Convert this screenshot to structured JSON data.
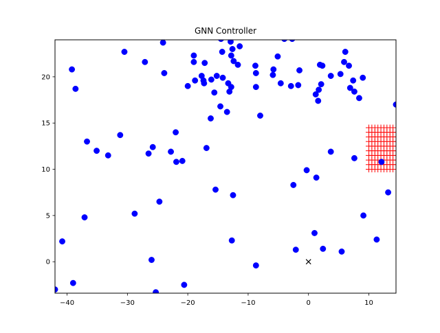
{
  "chart_data": {
    "type": "scatter",
    "title": "GNN Controller",
    "xlabel": "",
    "ylabel": "",
    "xlim": [
      -42,
      14.5
    ],
    "ylim": [
      -3.4,
      24
    ],
    "xticks": [
      -40,
      -30,
      -20,
      -10,
      0,
      10
    ],
    "yticks": [
      0,
      5,
      10,
      15,
      20
    ],
    "xtick_labels": [
      "−40",
      "−30",
      "−20",
      "−10",
      "0",
      "10"
    ],
    "ytick_labels": [
      "0",
      "5",
      "10",
      "15",
      "20"
    ],
    "grid": false,
    "legend": "none",
    "series": [
      {
        "marker": "circle",
        "color": "#0000ff",
        "points": [
          [
            -42.0,
            -3.0
          ],
          [
            -40.8,
            2.2
          ],
          [
            -39.2,
            20.8
          ],
          [
            -39.0,
            -2.3
          ],
          [
            -38.6,
            18.7
          ],
          [
            -37.1,
            4.8
          ],
          [
            -36.7,
            13.0
          ],
          [
            -35.1,
            12.0
          ],
          [
            -33.2,
            11.5
          ],
          [
            -31.2,
            13.7
          ],
          [
            -30.5,
            22.7
          ],
          [
            -28.8,
            5.2
          ],
          [
            -27.1,
            21.6
          ],
          [
            -26.5,
            11.7
          ],
          [
            -26.0,
            0.2
          ],
          [
            -25.8,
            12.4
          ],
          [
            -25.3,
            -3.3
          ],
          [
            -24.7,
            6.5
          ],
          [
            -24.1,
            23.7
          ],
          [
            -23.9,
            20.4
          ],
          [
            -22.8,
            11.9
          ],
          [
            -22.0,
            14.0
          ],
          [
            -21.9,
            10.8
          ],
          [
            -20.9,
            10.9
          ],
          [
            -20.6,
            -2.5
          ],
          [
            -20.0,
            19.0
          ],
          [
            -19.0,
            22.3
          ],
          [
            -19.0,
            21.6
          ],
          [
            -18.8,
            19.6
          ],
          [
            -17.7,
            20.1
          ],
          [
            -17.4,
            19.6
          ],
          [
            -17.3,
            19.3
          ],
          [
            -17.2,
            21.5
          ],
          [
            -16.9,
            12.3
          ],
          [
            -16.2,
            15.5
          ],
          [
            -16.1,
            19.7
          ],
          [
            -15.6,
            18.3
          ],
          [
            -15.4,
            7.8
          ],
          [
            -15.2,
            20.1
          ],
          [
            -14.6,
            16.8
          ],
          [
            -14.5,
            24.1
          ],
          [
            -14.3,
            22.7
          ],
          [
            -14.2,
            19.9
          ],
          [
            -13.5,
            16.2
          ],
          [
            -13.3,
            19.3
          ],
          [
            -13.1,
            18.4
          ],
          [
            -12.9,
            23.8
          ],
          [
            -12.8,
            22.3
          ],
          [
            -12.8,
            18.9
          ],
          [
            -12.7,
            2.3
          ],
          [
            -12.6,
            23.0
          ],
          [
            -12.5,
            7.2
          ],
          [
            -12.4,
            21.7
          ],
          [
            -11.7,
            21.3
          ],
          [
            -11.4,
            23.3
          ],
          [
            -8.8,
            21.2
          ],
          [
            -8.7,
            20.4
          ],
          [
            -8.7,
            18.9
          ],
          [
            -8.7,
            -0.4
          ],
          [
            -8.0,
            15.8
          ],
          [
            -5.9,
            20.2
          ],
          [
            -5.8,
            20.8
          ],
          [
            -5.1,
            22.2
          ],
          [
            -4.6,
            19.3
          ],
          [
            -4.0,
            24.1
          ],
          [
            -2.9,
            19.0
          ],
          [
            -2.7,
            24.1
          ],
          [
            -2.5,
            8.3
          ],
          [
            -2.1,
            1.3
          ],
          [
            -1.7,
            19.1
          ],
          [
            -1.5,
            20.7
          ],
          [
            -0.3,
            9.9
          ],
          [
            1.0,
            3.1
          ],
          [
            1.2,
            18.1
          ],
          [
            1.3,
            9.1
          ],
          [
            1.6,
            17.4
          ],
          [
            1.7,
            18.6
          ],
          [
            1.9,
            21.3
          ],
          [
            2.1,
            19.2
          ],
          [
            2.3,
            21.2
          ],
          [
            2.4,
            1.4
          ],
          [
            3.7,
            20.1
          ],
          [
            3.7,
            11.9
          ],
          [
            5.3,
            20.3
          ],
          [
            5.5,
            1.1
          ],
          [
            5.9,
            21.6
          ],
          [
            6.1,
            22.7
          ],
          [
            6.7,
            21.2
          ],
          [
            6.9,
            18.8
          ],
          [
            7.4,
            19.6
          ],
          [
            7.6,
            18.4
          ],
          [
            7.6,
            11.2
          ],
          [
            8.4,
            17.7
          ],
          [
            9.0,
            19.9
          ],
          [
            9.1,
            5.0
          ],
          [
            11.3,
            2.4
          ],
          [
            12.1,
            10.8
          ],
          [
            13.2,
            7.5
          ],
          [
            14.5,
            17.0
          ]
        ]
      },
      {
        "marker": "x",
        "color": "#000000",
        "points": [
          [
            0,
            0
          ]
        ]
      },
      {
        "marker": "plus-grid",
        "color": "#ff0000",
        "xrange": [
          10.0,
          14.5
        ],
        "yrange": [
          10.0,
          14.5
        ],
        "step": 0.5
      }
    ]
  }
}
